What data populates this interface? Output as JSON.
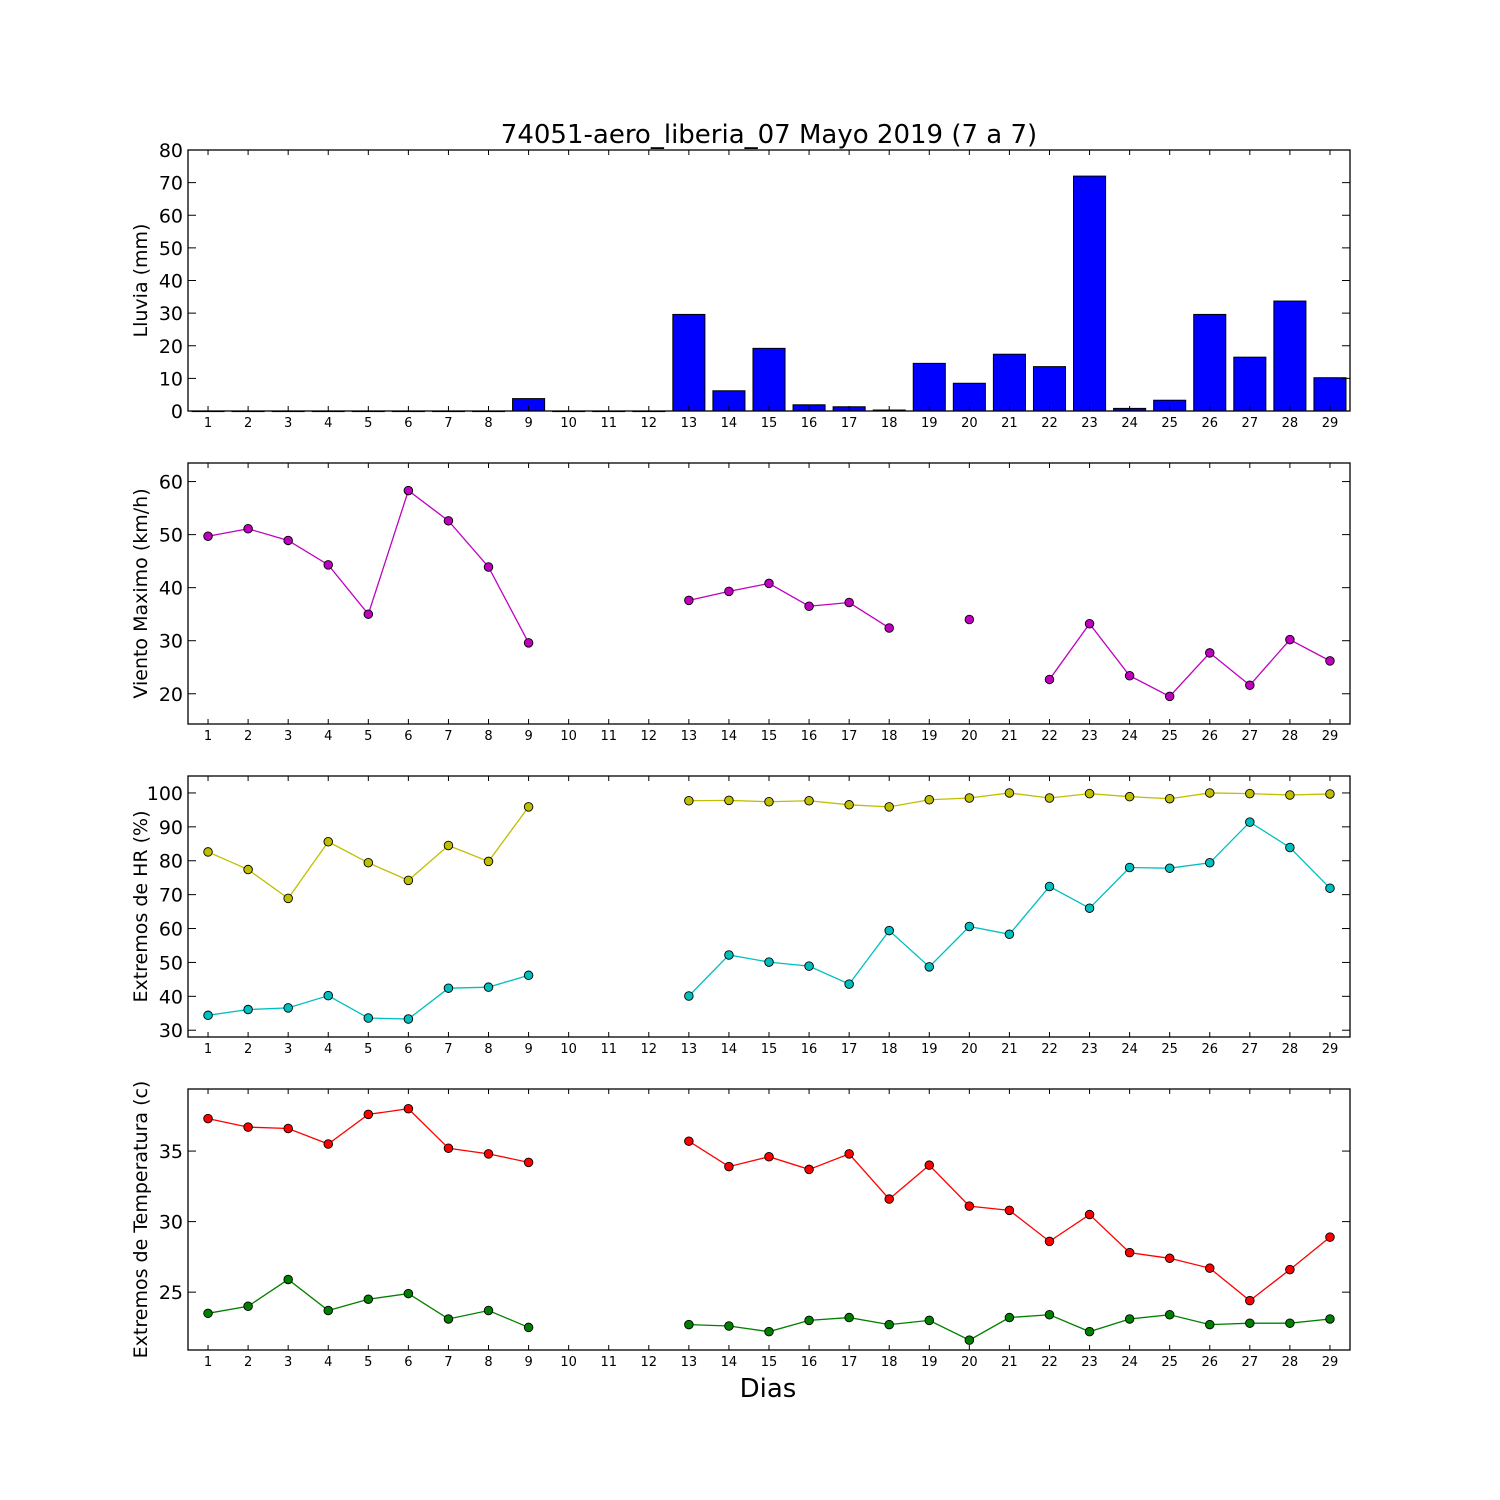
{
  "title": "74051-aero_liberia_07 Mayo 2019  (7 a 7)",
  "xlabel": "Dias",
  "days": [
    1,
    2,
    3,
    4,
    5,
    6,
    7,
    8,
    9,
    10,
    11,
    12,
    13,
    14,
    15,
    16,
    17,
    18,
    19,
    20,
    21,
    22,
    23,
    24,
    25,
    26,
    27,
    28,
    29
  ],
  "chart_data": [
    {
      "type": "bar",
      "ylabel": "Lluvia (mm)",
      "ylim": [
        0,
        80
      ],
      "yticks": [
        0,
        10,
        20,
        30,
        40,
        50,
        60,
        70,
        80
      ],
      "grid": false,
      "series": [
        {
          "color": "#0000ff",
          "values": [
            0,
            0,
            0,
            0,
            0,
            0,
            0,
            0,
            3.8,
            0,
            0,
            0,
            29.6,
            6.2,
            19.2,
            1.9,
            1.3,
            0.3,
            14.6,
            8.5,
            17.4,
            13.6,
            72,
            0.8,
            3.3,
            29.6,
            16.5,
            33.7,
            10.2
          ]
        }
      ]
    },
    {
      "type": "line",
      "ylabel": "Viento Maximo (km/h)",
      "ylim": [
        14.3,
        63.5
      ],
      "yticks": [
        20,
        30,
        40,
        50,
        60
      ],
      "grid": false,
      "series": [
        {
          "color": "#bf00bf",
          "values": [
            49.7,
            51.1,
            48.9,
            44.3,
            35,
            58.3,
            52.6,
            43.9,
            29.6,
            null,
            null,
            null,
            37.6,
            39.3,
            40.8,
            36.5,
            37.2,
            32.4,
            null,
            34,
            null,
            22.7,
            33.2,
            23.4,
            19.5,
            27.7,
            21.6,
            30.2,
            26.2
          ]
        }
      ]
    },
    {
      "type": "line",
      "ylabel": "Extremos de HR (%)",
      "ylim": [
        28,
        105
      ],
      "yticks": [
        30,
        40,
        50,
        60,
        70,
        80,
        90,
        100
      ],
      "grid": false,
      "series": [
        {
          "color": "#bfbf00",
          "values": [
            82.6,
            77.4,
            68.9,
            85.6,
            79.4,
            74.2,
            84.5,
            79.8,
            95.9,
            null,
            null,
            null,
            97.7,
            97.8,
            97.4,
            97.7,
            96.5,
            95.9,
            98,
            98.5,
            100,
            98.5,
            99.8,
            98.9,
            98.3,
            100,
            99.8,
            99.4,
            99.7
          ]
        },
        {
          "color": "#00bfbf",
          "values": [
            34.4,
            36.1,
            36.6,
            40.2,
            33.6,
            33.3,
            42.4,
            42.7,
            46.2,
            null,
            null,
            null,
            40.1,
            52.2,
            50.1,
            48.9,
            43.6,
            59.4,
            48.7,
            60.6,
            58.3,
            72.4,
            66,
            78,
            77.8,
            79.4,
            91.4,
            83.9,
            71.9
          ]
        }
      ]
    },
    {
      "type": "line",
      "ylabel": "Extremos de Temperatura (c)",
      "ylim": [
        20.9,
        39.4
      ],
      "yticks": [
        25,
        30,
        35
      ],
      "grid": false,
      "series": [
        {
          "color": "#ff0000",
          "values": [
            37.3,
            36.7,
            36.6,
            35.5,
            37.6,
            38,
            35.2,
            34.8,
            34.2,
            null,
            null,
            null,
            35.7,
            33.9,
            34.6,
            33.7,
            34.8,
            31.6,
            34,
            31.1,
            30.8,
            28.6,
            30.5,
            27.8,
            27.4,
            26.7,
            24.4,
            26.6,
            28.9
          ]
        },
        {
          "color": "#008000",
          "values": [
            23.5,
            24,
            25.9,
            23.7,
            24.5,
            24.9,
            23.1,
            23.7,
            22.5,
            null,
            null,
            null,
            22.7,
            22.6,
            22.2,
            23,
            23.2,
            22.7,
            23,
            21.6,
            23.2,
            23.4,
            22.2,
            23.1,
            23.4,
            22.7,
            22.8,
            22.8,
            23.1
          ]
        }
      ]
    }
  ]
}
